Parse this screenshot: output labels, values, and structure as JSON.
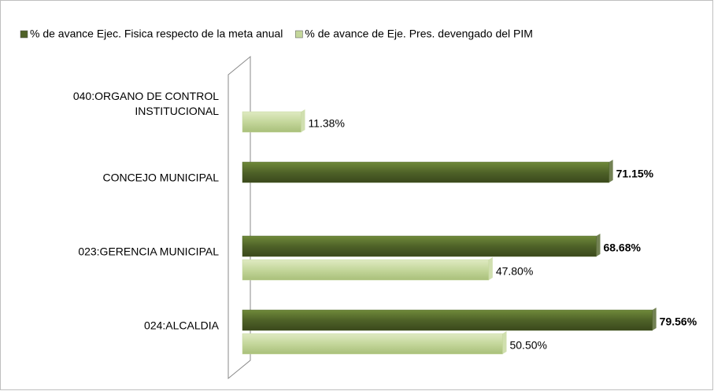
{
  "chart_data": {
    "type": "bar",
    "orientation": "horizontal",
    "categories": [
      "040:ORGANO DE CONTROL INSTITUCIONAL",
      "CONCEJO MUNICIPAL",
      "023:GERENCIA MUNICIPAL",
      "024:ALCALDIA"
    ],
    "series": [
      {
        "name": "% de avance Ejec. Fisica respecto de la meta anual",
        "color": "#4f6228",
        "values": [
          null,
          71.15,
          68.68,
          79.56
        ],
        "value_labels": [
          null,
          "71.15%",
          "68.68%",
          "79.56%"
        ]
      },
      {
        "name": "% de avance de Eje. Pres. devengado del PIM",
        "color": "#c4d79b",
        "values": [
          11.38,
          null,
          47.8,
          50.5
        ],
        "value_labels": [
          "11.38%",
          null,
          "47.80%",
          "50.50%"
        ]
      }
    ],
    "xlim": [
      0,
      90
    ],
    "legend": "top"
  }
}
